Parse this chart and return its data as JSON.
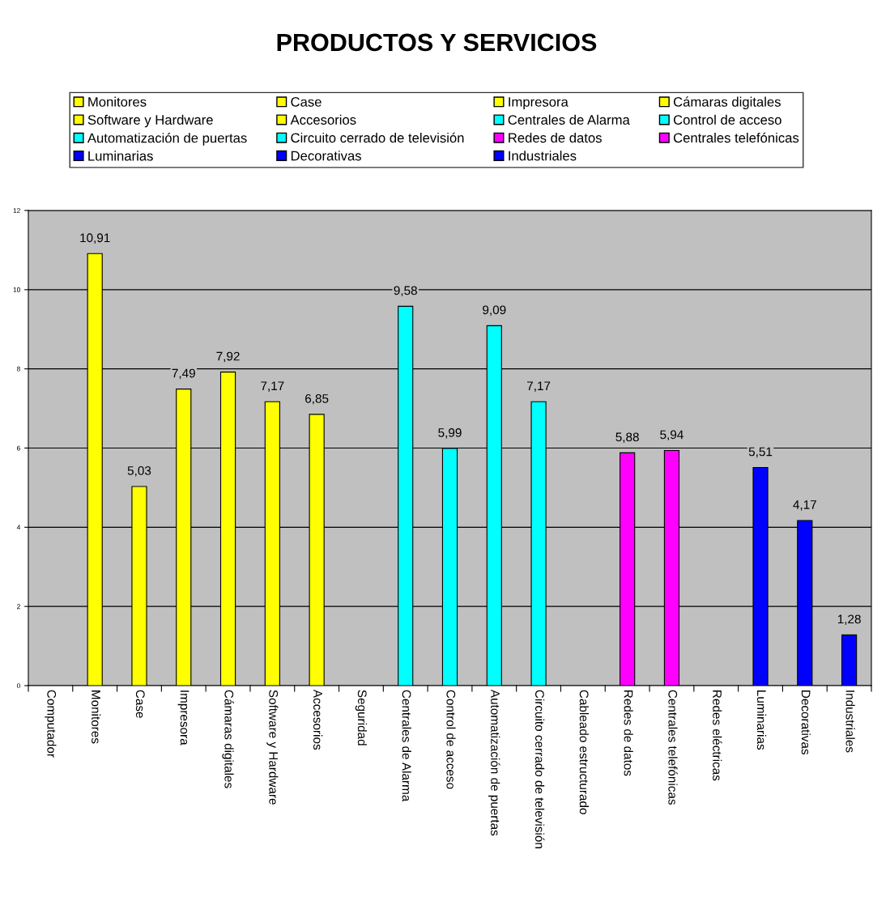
{
  "chart_data": {
    "type": "bar",
    "title": "PRODUCTOS Y SERVICIOS",
    "categories": [
      "Computador",
      "Monitores",
      "Case",
      "Impresora",
      "Cámaras digitales",
      "Software y Hardware",
      "Accesorios",
      "Seguridad",
      "Centrales de Alarma",
      "Control de acceso",
      "Automatización de puertas",
      "Circuito cerrado de televisión",
      "Cableado estructurado",
      "Redes de datos",
      "Centrales telefónicas",
      "Redes eléctricas",
      "Luminarias",
      "Decorativas",
      "Industriales"
    ],
    "series": [
      {
        "name": "Monitores",
        "color": "#ffff00",
        "values": [
          null,
          10.91,
          null,
          null,
          null,
          null,
          null,
          null,
          null,
          null,
          null,
          null,
          null,
          null,
          null,
          null,
          null,
          null,
          null
        ],
        "value_labels": [
          null,
          "10,91",
          null,
          null,
          null,
          null,
          null,
          null,
          null,
          null,
          null,
          null,
          null,
          null,
          null,
          null,
          null,
          null,
          null
        ]
      },
      {
        "name": "Case",
        "color": "#ffff00",
        "values": [
          null,
          null,
          5.03,
          null,
          null,
          null,
          null,
          null,
          null,
          null,
          null,
          null,
          null,
          null,
          null,
          null,
          null,
          null,
          null
        ],
        "value_labels": [
          null,
          null,
          "5,03",
          null,
          null,
          null,
          null,
          null,
          null,
          null,
          null,
          null,
          null,
          null,
          null,
          null,
          null,
          null,
          null
        ]
      },
      {
        "name": "Impresora",
        "color": "#ffff00",
        "values": [
          null,
          null,
          null,
          7.49,
          null,
          null,
          null,
          null,
          null,
          null,
          null,
          null,
          null,
          null,
          null,
          null,
          null,
          null,
          null
        ],
        "value_labels": [
          null,
          null,
          null,
          "7,49",
          null,
          null,
          null,
          null,
          null,
          null,
          null,
          null,
          null,
          null,
          null,
          null,
          null,
          null,
          null
        ]
      },
      {
        "name": "Cámaras digitales",
        "color": "#ffff00",
        "values": [
          null,
          null,
          null,
          null,
          7.92,
          null,
          null,
          null,
          null,
          null,
          null,
          null,
          null,
          null,
          null,
          null,
          null,
          null,
          null
        ],
        "value_labels": [
          null,
          null,
          null,
          null,
          "7,92",
          null,
          null,
          null,
          null,
          null,
          null,
          null,
          null,
          null,
          null,
          null,
          null,
          null,
          null
        ]
      },
      {
        "name": "Software y Hardware",
        "color": "#ffff00",
        "values": [
          null,
          null,
          null,
          null,
          null,
          7.17,
          null,
          null,
          null,
          null,
          null,
          null,
          null,
          null,
          null,
          null,
          null,
          null,
          null
        ],
        "value_labels": [
          null,
          null,
          null,
          null,
          null,
          "7,17",
          null,
          null,
          null,
          null,
          null,
          null,
          null,
          null,
          null,
          null,
          null,
          null,
          null
        ]
      },
      {
        "name": "Accesorios",
        "color": "#ffff00",
        "values": [
          null,
          null,
          null,
          null,
          null,
          null,
          6.85,
          null,
          null,
          null,
          null,
          null,
          null,
          null,
          null,
          null,
          null,
          null,
          null
        ],
        "value_labels": [
          null,
          null,
          null,
          null,
          null,
          null,
          "6,85",
          null,
          null,
          null,
          null,
          null,
          null,
          null,
          null,
          null,
          null,
          null,
          null
        ]
      },
      {
        "name": "Centrales de Alarma",
        "color": "#00ffff",
        "values": [
          null,
          null,
          null,
          null,
          null,
          null,
          null,
          null,
          9.58,
          null,
          null,
          null,
          null,
          null,
          null,
          null,
          null,
          null,
          null
        ],
        "value_labels": [
          null,
          null,
          null,
          null,
          null,
          null,
          null,
          null,
          "9,58",
          null,
          null,
          null,
          null,
          null,
          null,
          null,
          null,
          null,
          null
        ]
      },
      {
        "name": "Control de acceso",
        "color": "#00ffff",
        "values": [
          null,
          null,
          null,
          null,
          null,
          null,
          null,
          null,
          null,
          5.99,
          null,
          null,
          null,
          null,
          null,
          null,
          null,
          null,
          null
        ],
        "value_labels": [
          null,
          null,
          null,
          null,
          null,
          null,
          null,
          null,
          null,
          "5,99",
          null,
          null,
          null,
          null,
          null,
          null,
          null,
          null,
          null
        ]
      },
      {
        "name": "Automatización de puertas",
        "color": "#00ffff",
        "values": [
          null,
          null,
          null,
          null,
          null,
          null,
          null,
          null,
          null,
          null,
          9.09,
          null,
          null,
          null,
          null,
          null,
          null,
          null,
          null
        ],
        "value_labels": [
          null,
          null,
          null,
          null,
          null,
          null,
          null,
          null,
          null,
          null,
          "9,09",
          null,
          null,
          null,
          null,
          null,
          null,
          null,
          null
        ]
      },
      {
        "name": "Circuito cerrado de televisión",
        "color": "#00ffff",
        "values": [
          null,
          null,
          null,
          null,
          null,
          null,
          null,
          null,
          null,
          null,
          null,
          7.17,
          null,
          null,
          null,
          null,
          null,
          null,
          null
        ],
        "value_labels": [
          null,
          null,
          null,
          null,
          null,
          null,
          null,
          null,
          null,
          null,
          null,
          "7,17",
          null,
          null,
          null,
          null,
          null,
          null,
          null
        ]
      },
      {
        "name": "Redes de datos",
        "color": "#ff00ff",
        "values": [
          null,
          null,
          null,
          null,
          null,
          null,
          null,
          null,
          null,
          null,
          null,
          null,
          null,
          5.88,
          null,
          null,
          null,
          null,
          null
        ],
        "value_labels": [
          null,
          null,
          null,
          null,
          null,
          null,
          null,
          null,
          null,
          null,
          null,
          null,
          null,
          "5,88",
          null,
          null,
          null,
          null,
          null
        ]
      },
      {
        "name": "Centrales telefónicas",
        "color": "#ff00ff",
        "values": [
          null,
          null,
          null,
          null,
          null,
          null,
          null,
          null,
          null,
          null,
          null,
          null,
          null,
          null,
          5.94,
          null,
          null,
          null,
          null
        ],
        "value_labels": [
          null,
          null,
          null,
          null,
          null,
          null,
          null,
          null,
          null,
          null,
          null,
          null,
          null,
          null,
          "5,94",
          null,
          null,
          null,
          null
        ]
      },
      {
        "name": "Luminarias",
        "color": "#0000ff",
        "values": [
          null,
          null,
          null,
          null,
          null,
          null,
          null,
          null,
          null,
          null,
          null,
          null,
          null,
          null,
          null,
          null,
          5.51,
          null,
          null
        ],
        "value_labels": [
          null,
          null,
          null,
          null,
          null,
          null,
          null,
          null,
          null,
          null,
          null,
          null,
          null,
          null,
          null,
          null,
          "5,51",
          null,
          null
        ]
      },
      {
        "name": "Decorativas",
        "color": "#0000ff",
        "values": [
          null,
          null,
          null,
          null,
          null,
          null,
          null,
          null,
          null,
          null,
          null,
          null,
          null,
          null,
          null,
          null,
          null,
          4.17,
          null
        ],
        "value_labels": [
          null,
          null,
          null,
          null,
          null,
          null,
          null,
          null,
          null,
          null,
          null,
          null,
          null,
          null,
          null,
          null,
          null,
          "4,17",
          null
        ]
      },
      {
        "name": "Industriales",
        "color": "#0000ff",
        "values": [
          null,
          null,
          null,
          null,
          null,
          null,
          null,
          null,
          null,
          null,
          null,
          null,
          null,
          null,
          null,
          null,
          null,
          null,
          1.28
        ],
        "value_labels": [
          null,
          null,
          null,
          null,
          null,
          null,
          null,
          null,
          null,
          null,
          null,
          null,
          null,
          null,
          null,
          null,
          null,
          null,
          "1,28"
        ]
      }
    ],
    "ylim": [
      0,
      12
    ],
    "yticks": [
      0,
      2,
      4,
      6,
      8,
      10,
      12
    ],
    "grid": "y",
    "legend": "top"
  }
}
